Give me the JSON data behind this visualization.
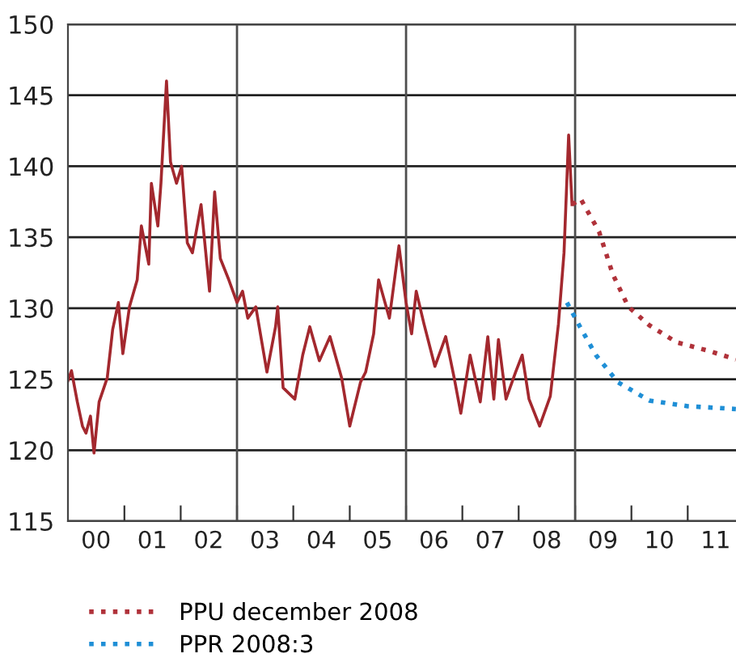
{
  "chart_data": {
    "type": "line",
    "xlim": [
      "2000-01-01",
      "2011-11-10"
    ],
    "ylim": [
      115,
      150
    ],
    "yticks": [
      115,
      120,
      125,
      130,
      135,
      140,
      145,
      150
    ],
    "xticks": [
      {
        "value": "2000-07-01",
        "label": "00"
      },
      {
        "value": "2001-01-01",
        "label": null
      },
      {
        "value": "2001-07-01",
        "label": "01"
      },
      {
        "value": "2002-01-01",
        "label": null
      },
      {
        "value": "2002-07-01",
        "label": "02"
      },
      {
        "value": "2003-01-01",
        "label": null
      },
      {
        "value": "2003-07-01",
        "label": "03"
      },
      {
        "value": "2004-01-01",
        "label": null
      },
      {
        "value": "2004-07-01",
        "label": "04"
      },
      {
        "value": "2005-01-01",
        "label": null
      },
      {
        "value": "2005-07-01",
        "label": "05"
      },
      {
        "value": "2006-01-01",
        "label": null
      },
      {
        "value": "2006-07-01",
        "label": "06"
      },
      {
        "value": "2007-01-01",
        "label": null
      },
      {
        "value": "2007-07-01",
        "label": "07"
      },
      {
        "value": "2008-01-01",
        "label": null
      },
      {
        "value": "2008-07-01",
        "label": "08"
      },
      {
        "value": "2009-01-01",
        "label": null
      },
      {
        "value": "2009-07-01",
        "label": "09"
      },
      {
        "value": "2010-01-01",
        "label": null
      },
      {
        "value": "2010-07-01",
        "label": "10"
      },
      {
        "value": "2011-01-01",
        "label": null
      },
      {
        "value": "2011-07-01",
        "label": "11"
      }
    ],
    "grid": "y",
    "legend": "bottom left",
    "ref_lines": [
      {
        "axis": "x",
        "value": "2003-01-01",
        "color": "#4d4d4d"
      },
      {
        "axis": "x",
        "value": "2006-01-01",
        "color": "#4d4d4d"
      },
      {
        "axis": "x",
        "value": "2009-01-01",
        "color": "#4d4d4d"
      }
    ],
    "series": [
      {
        "color": "#a3282e",
        "line_style": "solid",
        "x": [
          "2000-01-01",
          "2000-01-24",
          "2000-03-02",
          "2000-04-04",
          "2000-04-27",
          "2000-05-26",
          "2000-06-18",
          "2000-07-21",
          "2000-09-12",
          "2000-10-17",
          "2000-11-23",
          "2000-12-22",
          "2001-02-03",
          "2001-03-25",
          "2001-04-21",
          "2001-06-08",
          "2001-06-25",
          "2001-08-06",
          "2001-08-26",
          "2001-10-01",
          "2001-10-27",
          "2001-12-05",
          "2002-01-07",
          "2002-02-13",
          "2002-03-18",
          "2002-05-13",
          "2002-07-07",
          "2002-08-09",
          "2002-09-15",
          "2002-11-09",
          "2003-01-01",
          "2003-02-06",
          "2003-03-12",
          "2003-05-03",
          "2003-07-14",
          "2003-09-08",
          "2003-09-22",
          "2003-10-27",
          "2004-01-11",
          "2004-03-02",
          "2004-04-17",
          "2004-06-18",
          "2004-08-26",
          "2004-11-09",
          "2005-01-01",
          "2005-03-12",
          "2005-04-14",
          "2005-06-05",
          "2005-07-07",
          "2005-09-15",
          "2005-11-16",
          "2006-01-01",
          "2006-02-06",
          "2006-03-08",
          "2006-04-27",
          "2006-07-07",
          "2006-09-15",
          "2006-11-09",
          "2006-12-22",
          "2007-02-20",
          "2007-04-27",
          "2007-06-15",
          "2007-07-24",
          "2007-08-23",
          "2007-10-11",
          "2007-12-12",
          "2008-01-24",
          "2008-03-08",
          "2008-05-16",
          "2008-07-24",
          "2008-09-15",
          "2008-10-21",
          "2008-11-20",
          "2008-12-12"
        ],
        "values": [
          124.9,
          125.6,
          123.4,
          121.7,
          121.2,
          122.4,
          119.8,
          123.4,
          125.1,
          128.5,
          130.4,
          126.8,
          130.1,
          132.0,
          135.8,
          133.1,
          138.8,
          135.8,
          138.8,
          146.0,
          140.3,
          138.8,
          140.0,
          134.6,
          133.9,
          137.3,
          131.2,
          138.2,
          133.5,
          132.0,
          130.4,
          131.2,
          129.3,
          130.1,
          125.5,
          128.7,
          130.1,
          124.4,
          123.6,
          126.7,
          128.7,
          126.3,
          128.0,
          125.1,
          121.7,
          124.8,
          125.5,
          128.2,
          132.0,
          129.3,
          134.4,
          130.4,
          128.2,
          131.2,
          128.9,
          125.9,
          128.0,
          125.1,
          122.6,
          126.7,
          123.4,
          128.0,
          123.6,
          127.8,
          123.6,
          125.5,
          126.7,
          123.6,
          121.7,
          123.8,
          128.9,
          133.9,
          142.2,
          137.3
        ]
      },
      {
        "name": "PPU december 2008",
        "color": "#b0323a",
        "line_style": "dotted",
        "x": [
          "2008-12-12",
          "2009-02-06",
          "2009-06-05",
          "2009-09-02",
          "2009-12-12",
          "2010-04-27",
          "2010-10-21",
          "2011-05-16",
          "2011-11-09"
        ],
        "values": [
          137.3,
          137.7,
          135.4,
          132.4,
          130.1,
          128.8,
          127.6,
          127.0,
          126.4
        ]
      },
      {
        "name": "PPR 2008:3",
        "color": "#1f8fd6",
        "line_style": "dotted",
        "x": [
          "2008-11-09",
          "2009-02-06",
          "2009-05-16",
          "2009-10-04",
          "2010-04-27",
          "2011-01-01",
          "2011-11-09"
        ],
        "values": [
          130.4,
          128.6,
          126.7,
          124.8,
          123.5,
          123.1,
          122.9
        ]
      }
    ]
  }
}
